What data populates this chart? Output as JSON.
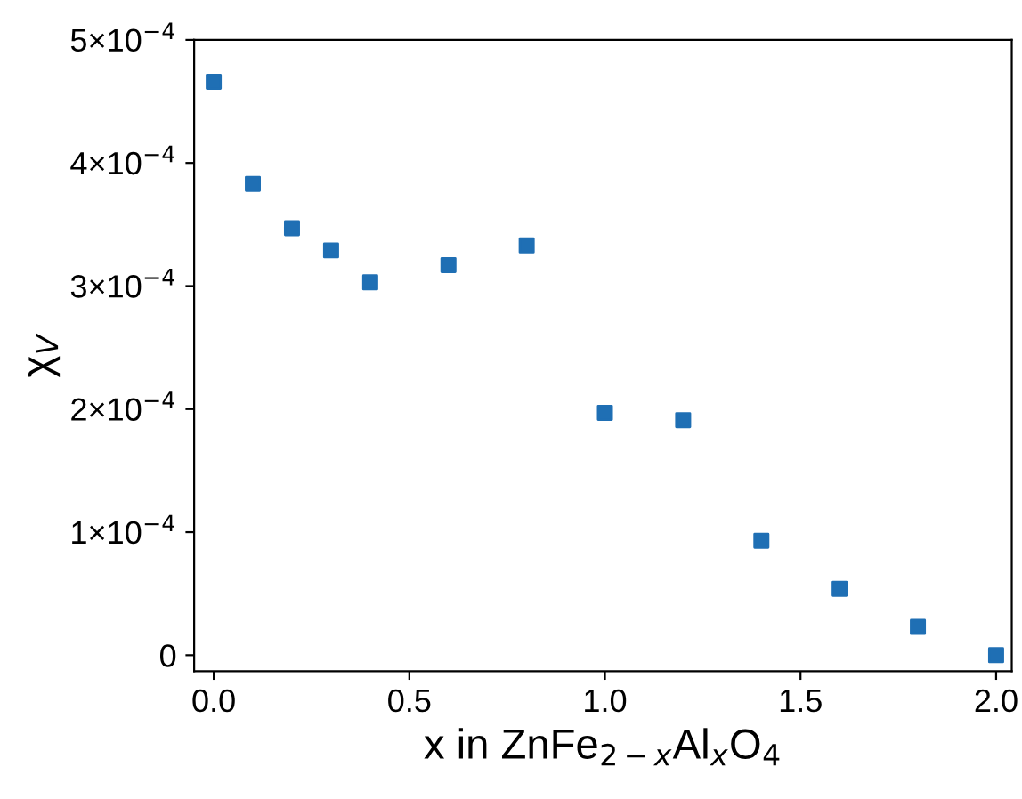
{
  "chart_data": {
    "type": "scatter",
    "xlabel": "x in ZnFe$_{2−x}$Al$_{x}$O$_{4}$",
    "ylabel": "χ$_{V}$",
    "x": [
      0.0,
      0.1,
      0.2,
      0.3,
      0.4,
      0.6,
      0.8,
      1.0,
      1.2,
      1.4,
      1.6,
      1.8,
      2.0
    ],
    "series": [
      {
        "color": "#1f6fb4",
        "values": [
          0.000466,
          0.000383,
          0.000347,
          0.000329,
          0.000303,
          0.000317,
          0.000333,
          0.000197,
          0.000191,
          9.3e-05,
          5.4e-05,
          2.3e-05,
          0.0
        ]
      }
    ],
    "marker": "square",
    "grid": false,
    "legend": false,
    "xlim": [
      -0.05,
      2.04
    ],
    "ylim": [
      -1.3e-05,
      0.0005
    ],
    "xticks": [
      {
        "value": 0.0,
        "label": "0.0"
      },
      0.5,
      {
        "value": 1.0,
        "label": "1.0"
      },
      1.5,
      {
        "value": 2.0,
        "label": "2.0"
      }
    ],
    "yticks": [
      0,
      {
        "value": 0.0001,
        "label": "1×10$^{−4}$"
      },
      {
        "value": 0.0002,
        "label": "2×10$^{−4}$"
      },
      {
        "value": 0.0003,
        "label": "3×10$^{−4}$"
      },
      {
        "value": 0.0004,
        "label": "4×10$^{−4}$"
      },
      {
        "value": 0.0005,
        "label": "5×10$^{−4}$"
      }
    ]
  }
}
